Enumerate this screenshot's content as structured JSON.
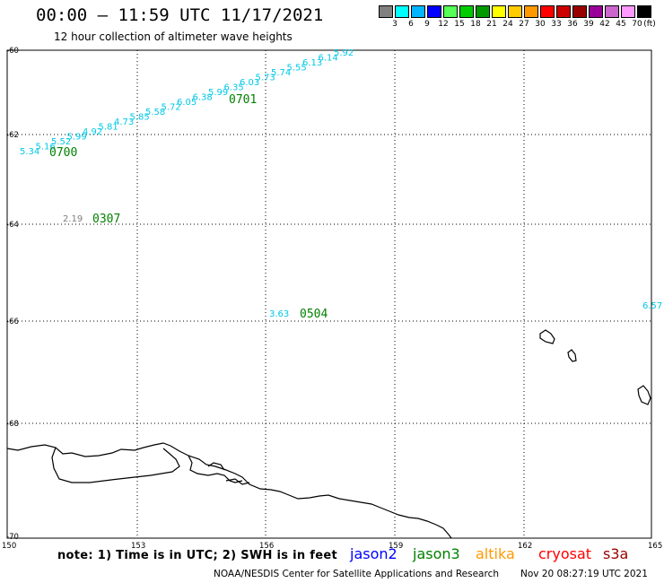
{
  "header": {
    "title": "00:00 – 11:59 UTC 11/17/2021",
    "subtitle": "12 hour collection of altimeter wave heights"
  },
  "legend": {
    "unit": "(ft)",
    "bins": [
      {
        "label": "3",
        "color": "#808080"
      },
      {
        "label": "6",
        "color": "#00ffff"
      },
      {
        "label": "9",
        "color": "#00b4ff"
      },
      {
        "label": "12",
        "color": "#0000ff"
      },
      {
        "label": "15",
        "color": "#55ff55"
      },
      {
        "label": "18",
        "color": "#00cc00"
      },
      {
        "label": "21",
        "color": "#009900"
      },
      {
        "label": "24",
        "color": "#ffff00"
      },
      {
        "label": "27",
        "color": "#ffcc00"
      },
      {
        "label": "30",
        "color": "#ff9900"
      },
      {
        "label": "33",
        "color": "#ff0000"
      },
      {
        "label": "36",
        "color": "#cc0000"
      },
      {
        "label": "39",
        "color": "#990000"
      },
      {
        "label": "42",
        "color": "#990099"
      },
      {
        "label": "45",
        "color": "#cc66cc"
      },
      {
        "label": "70",
        "color": "#ff99ff"
      },
      {
        "label": "",
        "color": "#000000"
      }
    ]
  },
  "axes": {
    "lon_labels": [
      "150",
      "153",
      "156",
      "159",
      "162",
      "165"
    ],
    "lat_labels": [
      "-60",
      "-62",
      "-64",
      "-66",
      "-68",
      "-70"
    ]
  },
  "tracks": {
    "wave_height_color": "#00c8e6",
    "time_color": "#008000",
    "track1_values": [
      "5.34",
      "5.16",
      "5.52",
      "5.99",
      "4.92",
      "5.81",
      "4.73",
      "5.85",
      "5.58",
      "5.72",
      "6.05",
      "6.38",
      "5.99",
      "6.35",
      "6.03",
      "5.73",
      "5.74",
      "5.55",
      "6.13",
      "6.14",
      "5.92"
    ],
    "time_labels": [
      "0700",
      "0701",
      "0307",
      "0504"
    ],
    "gray_value": "2.19",
    "value_0504": "3.63",
    "value_east": "6.57"
  },
  "footer": {
    "note": "note: 1) Time is in UTC; 2) SWH is in feet",
    "satellites": [
      {
        "name": "jason2",
        "color": "#0000ff"
      },
      {
        "name": "jason3",
        "color": "#008000"
      },
      {
        "name": "altika",
        "color": "#ff9900"
      },
      {
        "name": "cryosat",
        "color": "#ff0000"
      },
      {
        "name": "s3a",
        "color": "#990000"
      }
    ],
    "credit": "NOAA/NESDIS Center for Satellite Applications and Research",
    "timestamp": "Nov 20 08:27:19 UTC 2021"
  }
}
